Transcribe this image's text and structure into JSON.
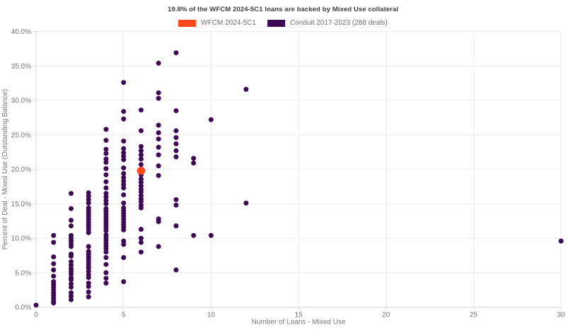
{
  "chart_data": {
    "type": "scatter",
    "title": "19.8% of the WFCM 2024-5C1 loans are backed by Mixed Use collateral",
    "xlabel": "Number of Loans - Mixed Use",
    "ylabel": "Percent of Deal - Mixed Use (Outstanding Balance)",
    "xlim": [
      0,
      30
    ],
    "ylim": [
      0,
      40
    ],
    "x_ticks": [
      0,
      5,
      10,
      15,
      20,
      25,
      30
    ],
    "x_tick_labels": [
      "0",
      "5",
      "10",
      "15",
      "20",
      "25",
      "30"
    ],
    "y_ticks": [
      0,
      5,
      10,
      15,
      20,
      25,
      30,
      35,
      40
    ],
    "y_tick_labels": [
      "0.0%",
      "5.0%",
      "10.0%",
      "15.0%",
      "20.0%",
      "25.0%",
      "30.0%",
      "35.0%",
      "40.0%"
    ],
    "grid": true,
    "legend_position": "top-center",
    "colors": {
      "grid": "#ebebeb",
      "axis": "#d9d9d9",
      "tick_text": "#757575",
      "axis_title_text": "#757575",
      "title_text": "#404040"
    },
    "series": [
      {
        "name": "WFCM 2024-5C1",
        "color": "#ff4a1f",
        "marker_size": 11.5,
        "points": [
          [
            6,
            19.8
          ]
        ]
      },
      {
        "name": "Conduit 2017-2023 (288 deals)",
        "color": "#3e0a54",
        "marker_size": 7,
        "points": [
          [
            0,
            0.3
          ],
          [
            1,
            10.4
          ],
          [
            1,
            9.4
          ],
          [
            1,
            7.3
          ],
          [
            1,
            6.3
          ],
          [
            1,
            5.4
          ],
          [
            1,
            4.5
          ],
          [
            1,
            3.7
          ],
          [
            1,
            3.3
          ],
          [
            1,
            2.9
          ],
          [
            1,
            2.5
          ],
          [
            1,
            2.1
          ],
          [
            1,
            1.7
          ],
          [
            1,
            1.3
          ],
          [
            1,
            0.9
          ],
          [
            1,
            0.6
          ],
          [
            2,
            16.5
          ],
          [
            2,
            14.3
          ],
          [
            2,
            12.6
          ],
          [
            2,
            11.8
          ],
          [
            2,
            10.4
          ],
          [
            2,
            10.0
          ],
          [
            2,
            9.6
          ],
          [
            2,
            9.2
          ],
          [
            2,
            8.8
          ],
          [
            2,
            7.7
          ],
          [
            2,
            7.4
          ],
          [
            2,
            6.6
          ],
          [
            2,
            6.1
          ],
          [
            2,
            5.6
          ],
          [
            2,
            5.2
          ],
          [
            2,
            4.8
          ],
          [
            2,
            4.3
          ],
          [
            2,
            4.0
          ],
          [
            2,
            3.4
          ],
          [
            2,
            2.9
          ],
          [
            2,
            2.1
          ],
          [
            2,
            1.6
          ],
          [
            2,
            1.1
          ],
          [
            3,
            16.6
          ],
          [
            3,
            16.1
          ],
          [
            3,
            15.6
          ],
          [
            3,
            15.1
          ],
          [
            3,
            14.4
          ],
          [
            3,
            14.0
          ],
          [
            3,
            13.6
          ],
          [
            3,
            13.2
          ],
          [
            3,
            12.8
          ],
          [
            3,
            12.4
          ],
          [
            3,
            12.0
          ],
          [
            3,
            11.6
          ],
          [
            3,
            11.2
          ],
          [
            3,
            10.8
          ],
          [
            3,
            8.8
          ],
          [
            3,
            8.1
          ],
          [
            3,
            7.7
          ],
          [
            3,
            7.3
          ],
          [
            3,
            6.9
          ],
          [
            3,
            6.5
          ],
          [
            3,
            6.1
          ],
          [
            3,
            5.7
          ],
          [
            3,
            5.2
          ],
          [
            3,
            4.7
          ],
          [
            3,
            4.3
          ],
          [
            3,
            3.5
          ],
          [
            3,
            3.0
          ],
          [
            3,
            2.2
          ],
          [
            3,
            1.5
          ],
          [
            4,
            25.8
          ],
          [
            4,
            24.2
          ],
          [
            4,
            22.9
          ],
          [
            4,
            22.3
          ],
          [
            4,
            21.5
          ],
          [
            4,
            21.0
          ],
          [
            4,
            20.1
          ],
          [
            4,
            19.2
          ],
          [
            4,
            18.2
          ],
          [
            4,
            17.3
          ],
          [
            4,
            16.5
          ],
          [
            4,
            16.0
          ],
          [
            4,
            15.5
          ],
          [
            4,
            15.0
          ],
          [
            4,
            14.3
          ],
          [
            4,
            13.9
          ],
          [
            4,
            13.5
          ],
          [
            4,
            13.1
          ],
          [
            4,
            12.7
          ],
          [
            4,
            12.3
          ],
          [
            4,
            11.9
          ],
          [
            4,
            11.5
          ],
          [
            4,
            11.1
          ],
          [
            4,
            10.5
          ],
          [
            4,
            10.1
          ],
          [
            4,
            9.7
          ],
          [
            4,
            9.3
          ],
          [
            4,
            8.9
          ],
          [
            4,
            8.5
          ],
          [
            4,
            8.0
          ],
          [
            4,
            7.2
          ],
          [
            4,
            6.2
          ],
          [
            4,
            5.0
          ],
          [
            4,
            4.2
          ],
          [
            4,
            3.5
          ],
          [
            5,
            32.6
          ],
          [
            5,
            28.4
          ],
          [
            5,
            27.3
          ],
          [
            5,
            24.1
          ],
          [
            5,
            23.0
          ],
          [
            5,
            22.4
          ],
          [
            5,
            21.9
          ],
          [
            5,
            21.4
          ],
          [
            5,
            20.2
          ],
          [
            5,
            19.4
          ],
          [
            5,
            18.8
          ],
          [
            5,
            18.3
          ],
          [
            5,
            17.8
          ],
          [
            5,
            17.3
          ],
          [
            5,
            16.3
          ],
          [
            5,
            15.1
          ],
          [
            5,
            14.4
          ],
          [
            5,
            14.0
          ],
          [
            5,
            13.6
          ],
          [
            5,
            13.2
          ],
          [
            5,
            12.8
          ],
          [
            5,
            12.4
          ],
          [
            5,
            12.0
          ],
          [
            5,
            11.6
          ],
          [
            5,
            11.2
          ],
          [
            5,
            9.6
          ],
          [
            5,
            9.1
          ],
          [
            5,
            7.2
          ],
          [
            5,
            3.7
          ],
          [
            6,
            28.6
          ],
          [
            6,
            25.6
          ],
          [
            6,
            23.3
          ],
          [
            6,
            22.7
          ],
          [
            6,
            22.1
          ],
          [
            6,
            21.5
          ],
          [
            6,
            20.7
          ],
          [
            6,
            19.2
          ],
          [
            6,
            18.6
          ],
          [
            6,
            18.1
          ],
          [
            6,
            17.6
          ],
          [
            6,
            17.1
          ],
          [
            6,
            16.7
          ],
          [
            6,
            16.2
          ],
          [
            6,
            15.7
          ],
          [
            6,
            15.3
          ],
          [
            6,
            14.8
          ],
          [
            6,
            14.4
          ],
          [
            6,
            11.3
          ],
          [
            6,
            10.0
          ],
          [
            6,
            9.4
          ],
          [
            6,
            8.0
          ],
          [
            7,
            35.4
          ],
          [
            7,
            31.1
          ],
          [
            7,
            30.3
          ],
          [
            7,
            26.4
          ],
          [
            7,
            25.3
          ],
          [
            7,
            24.4
          ],
          [
            7,
            23.2
          ],
          [
            7,
            22.1
          ],
          [
            7,
            20.5
          ],
          [
            7,
            19.1
          ],
          [
            7,
            12.8
          ],
          [
            7,
            12.4
          ],
          [
            7,
            8.8
          ],
          [
            8,
            36.9
          ],
          [
            8,
            28.5
          ],
          [
            8,
            25.6
          ],
          [
            8,
            24.6
          ],
          [
            8,
            23.7
          ],
          [
            8,
            22.7
          ],
          [
            8,
            21.8
          ],
          [
            8,
            15.6
          ],
          [
            8,
            14.8
          ],
          [
            8,
            11.8
          ],
          [
            8,
            5.4
          ],
          [
            9,
            21.6
          ],
          [
            9,
            20.9
          ],
          [
            9,
            10.4
          ],
          [
            10,
            27.2
          ],
          [
            10,
            10.4
          ],
          [
            12,
            31.6
          ],
          [
            12,
            15.1
          ],
          [
            30,
            9.6
          ]
        ]
      }
    ]
  }
}
